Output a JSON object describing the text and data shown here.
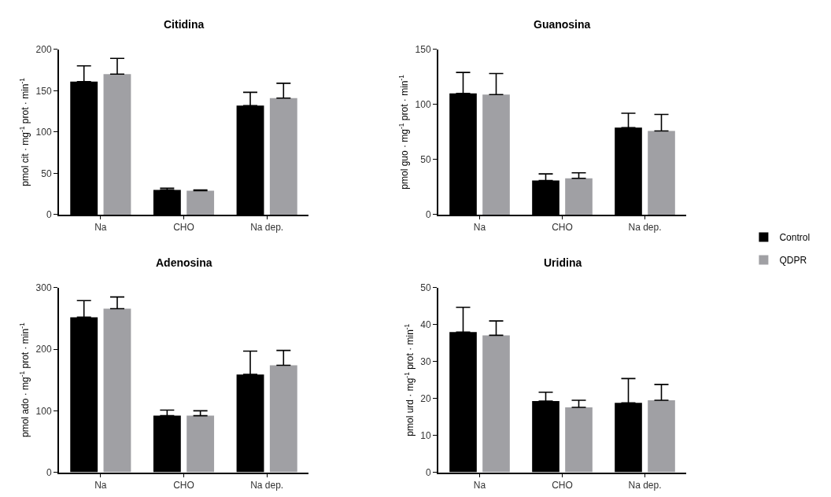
{
  "chart_data": [
    {
      "type": "bar",
      "title": "Citidina",
      "ylabel": "pmol cit · mg$^{-1}$ prot · min$^{-1}$",
      "categories": [
        "Na",
        "CHO",
        "Na dep."
      ],
      "ylim": [
        0,
        200
      ],
      "yticks": [
        0,
        50,
        100,
        150,
        200
      ],
      "legend": "right",
      "series": [
        {
          "name": "Control",
          "color": "#000000",
          "values": [
            161,
            30,
            132
          ],
          "errors": [
            [
              161,
              180
            ],
            [
              30,
              32
            ],
            [
              132,
              148
            ]
          ]
        },
        {
          "name": "QDPR",
          "color": "#a0a0a4",
          "values": [
            170,
            29,
            141
          ],
          "errors": [
            [
              170,
              189
            ],
            [
              29,
              30
            ],
            [
              141,
              159
            ]
          ]
        }
      ]
    },
    {
      "type": "bar",
      "title": "Guanosina",
      "ylabel": "pmol guo · mg$^{-1}$ prot · min$^{-1}$",
      "categories": [
        "Na",
        "CHO",
        "Na dep."
      ],
      "ylim": [
        0,
        150
      ],
      "yticks": [
        0,
        50,
        100,
        150
      ],
      "legend": "right",
      "series": [
        {
          "name": "Control",
          "color": "#000000",
          "values": [
            110,
            31,
            79
          ],
          "errors": [
            [
              110,
              129
            ],
            [
              31,
              37
            ],
            [
              79,
              92
            ]
          ]
        },
        {
          "name": "QDPR",
          "color": "#a0a0a4",
          "values": [
            109,
            33,
            76
          ],
          "errors": [
            [
              109,
              128
            ],
            [
              33,
              38
            ],
            [
              76,
              91
            ]
          ]
        }
      ]
    },
    {
      "type": "bar",
      "title": "Adenosina",
      "ylabel": "pmol ado · mg$^{-1}$ prot · min$^{-1}$",
      "categories": [
        "Na",
        "CHO",
        "Na dep."
      ],
      "ylim": [
        0,
        300
      ],
      "yticks": [
        0,
        100,
        200,
        300
      ],
      "legend": "right",
      "series": [
        {
          "name": "Control",
          "color": "#000000",
          "values": [
            252,
            92,
            159
          ],
          "errors": [
            [
              252,
              279
            ],
            [
              92,
              101
            ],
            [
              159,
              197
            ]
          ]
        },
        {
          "name": "QDPR",
          "color": "#a0a0a4",
          "values": [
            266,
            92,
            174
          ],
          "errors": [
            [
              266,
              285
            ],
            [
              92,
              100
            ],
            [
              174,
              198
            ]
          ]
        }
      ]
    },
    {
      "type": "bar",
      "title": "Uridina",
      "ylabel": "pmol urd · mg$^{-1}$ prot · min$^{-1}$",
      "categories": [
        "Na",
        "CHO",
        "Na dep."
      ],
      "ylim": [
        0,
        50
      ],
      "yticks": [
        0,
        10,
        20,
        30,
        40,
        50
      ],
      "legend": "right",
      "series": [
        {
          "name": "Control",
          "color": "#000000",
          "values": [
            38,
            19.3,
            18.8
          ],
          "errors": [
            [
              38,
              44.7
            ],
            [
              19.3,
              21.7
            ],
            [
              18.8,
              25.4
            ]
          ]
        },
        {
          "name": "QDPR",
          "color": "#a0a0a4",
          "values": [
            37.1,
            17.6,
            19.5
          ],
          "errors": [
            [
              37.1,
              41
            ],
            [
              17.6,
              19.5
            ],
            [
              19.5,
              23.8
            ]
          ]
        }
      ]
    }
  ]
}
